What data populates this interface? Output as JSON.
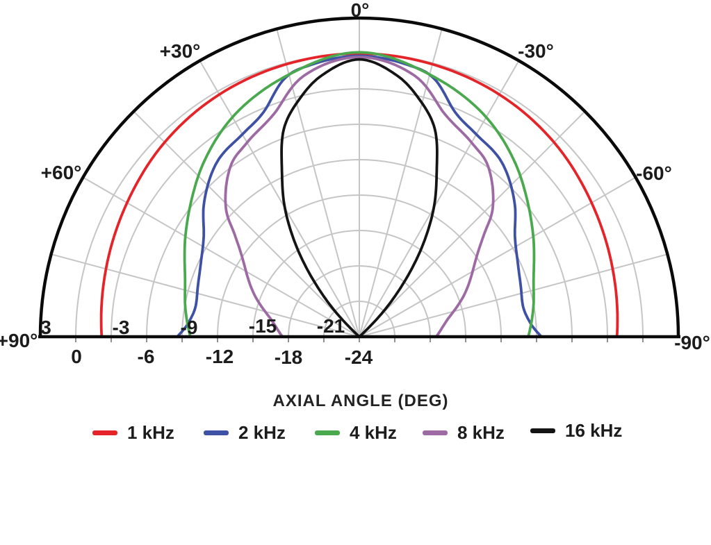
{
  "chart_data": {
    "type": "line",
    "subtype": "half-polar-directivity",
    "title": "AXIAL ANGLE (DEG)",
    "units": {
      "angle": "degrees",
      "level": "dB"
    },
    "angle_range_deg": [
      -90,
      90
    ],
    "outer_db": 3,
    "center_db": -24,
    "ring_step_db": 3,
    "spoke_step_deg": 15,
    "grid_on": true,
    "legend_position": "bottom",
    "angle_labels": [
      {
        "text": "0°"
      },
      {
        "text": "+30°"
      },
      {
        "text": "-30°"
      },
      {
        "text": "+60°"
      },
      {
        "text": "-60°"
      },
      {
        "text": "+90°"
      },
      {
        "text": "-90°"
      }
    ],
    "ring_labels_above_axis": [
      "3",
      "-3",
      "-9",
      "-15",
      "-21"
    ],
    "ring_labels_below_axis": [
      "0",
      "-6",
      "-12",
      "-18",
      "-24"
    ],
    "series": [
      {
        "name": "1 kHz",
        "color": "#e5242a",
        "symmetric": true,
        "angles_deg": [
          0,
          15,
          30,
          45,
          60,
          75,
          90
        ],
        "levels_db": [
          0.0,
          -0.1,
          -0.3,
          -0.7,
          -1.3,
          -1.8,
          -2.2
        ]
      },
      {
        "name": "2 kHz",
        "color": "#3e51a5",
        "symmetric": true,
        "angles_deg": [
          0,
          10,
          16,
          23,
          30,
          39,
          49,
          57,
          65,
          73,
          80,
          86,
          90
        ],
        "levels_db": [
          -0.2,
          -0.6,
          -1.2,
          -3.3,
          -4.2,
          -4.9,
          -6.6,
          -8.3,
          -9.2,
          -9.7,
          -9.9,
          -9.4,
          -8.6
        ]
      },
      {
        "name": "4 kHz",
        "color": "#4aa94e",
        "symmetric": true,
        "angles_deg": [
          0,
          15,
          29,
          41,
          51,
          60,
          71,
          81,
          90
        ],
        "levels_db": [
          0.1,
          -1.0,
          -2.4,
          -4.1,
          -5.7,
          -7.0,
          -8.4,
          -9.1,
          -9.7
        ]
      },
      {
        "name": "8 kHz",
        "color": "#9d6aa3",
        "symmetric": true,
        "angles_deg": [
          0,
          12,
          21,
          30,
          37,
          46,
          51,
          57,
          68,
          79,
          90
        ],
        "levels_db": [
          -0.3,
          -1.4,
          -3.8,
          -5.0,
          -5.9,
          -8.3,
          -10.5,
          -12.3,
          -14.4,
          -16.4,
          -17.5
        ]
      },
      {
        "name": "16 kHz",
        "color": "#141414",
        "symmetric": true,
        "angles_deg": [
          0,
          8,
          14,
          20,
          25,
          30,
          35,
          40,
          44,
          47,
          50,
          60,
          75,
          90
        ],
        "levels_db": [
          -0.5,
          -1.6,
          -3.2,
          -5.3,
          -8.5,
          -11.4,
          -14.8,
          -18.5,
          -21.3,
          -23.6,
          -24,
          -24,
          -24,
          -24
        ]
      }
    ],
    "colors": {
      "grid": "#c5c5c5",
      "boundary": "#0a0a0a",
      "tick": "#8f8f8f",
      "text": "#1c1c1c"
    }
  }
}
